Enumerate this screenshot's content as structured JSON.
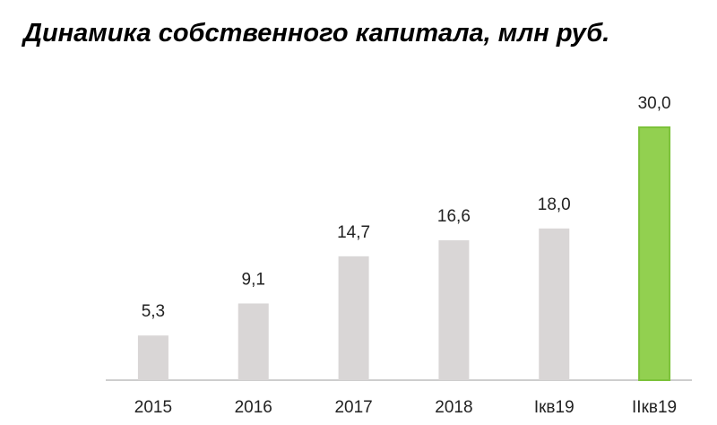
{
  "chart_data": {
    "type": "bar",
    "title": "Динамика собственного капитала, млн руб.",
    "categories": [
      "2015",
      "2016",
      "2017",
      "2018",
      "Iкв19",
      "IIкв19"
    ],
    "values": [
      5.3,
      9.1,
      14.7,
      16.6,
      18.0,
      30.0
    ],
    "value_labels": [
      "5,3",
      "9,1",
      "14,7",
      "16,6",
      "18,0",
      "30,0"
    ],
    "colors": [
      "#d9d6d6",
      "#d9d6d6",
      "#d9d6d6",
      "#d9d6d6",
      "#d9d6d6",
      "#92d050"
    ]
  }
}
